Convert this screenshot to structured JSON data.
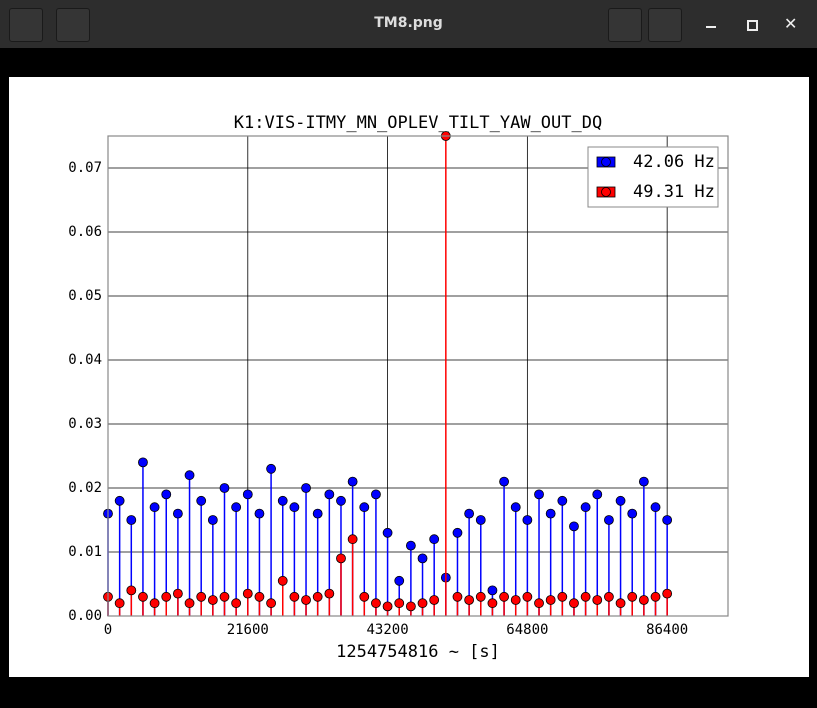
{
  "window": {
    "title": "TM8.png"
  },
  "chart_data": {
    "type": "stem",
    "title": "K1:VIS-ITMY_MN_OPLEV_TILT_YAW_OUT_DQ",
    "xlabel": "1254754816 ~ [s]",
    "xlim": [
      0,
      95800
    ],
    "xticks": [
      0,
      21600,
      43200,
      64800,
      86400
    ],
    "ylim": [
      0,
      0.075
    ],
    "yticks": [
      {
        "value": 0,
        "label": "0.00"
      },
      0.01,
      0.02,
      0.03,
      0.04,
      0.05,
      0.06,
      0.07
    ],
    "grid": true,
    "legend": "upper right",
    "x": [
      0,
      1800,
      3600,
      5400,
      7200,
      9000,
      10800,
      12600,
      14400,
      16200,
      18000,
      19800,
      21600,
      23400,
      25200,
      27000,
      28800,
      30600,
      32400,
      34200,
      36000,
      37800,
      39600,
      41400,
      43200,
      45000,
      46800,
      48600,
      50400,
      52200,
      54000,
      55800,
      57600,
      59400,
      61200,
      63000,
      64800,
      66600,
      68400,
      70200,
      72000,
      73800,
      75600,
      77400,
      79200,
      81000,
      82800,
      84600,
      86400
    ],
    "series": [
      {
        "name": "42.06 Hz",
        "color": "#0000ff",
        "values": [
          0.016,
          0.018,
          0.015,
          0.024,
          0.017,
          0.019,
          0.016,
          0.022,
          0.018,
          0.015,
          0.02,
          0.017,
          0.019,
          0.016,
          0.023,
          0.018,
          0.017,
          0.02,
          0.016,
          0.019,
          0.018,
          0.021,
          0.017,
          0.019,
          0.013,
          0.0055,
          0.011,
          0.009,
          0.012,
          0.006,
          0.013,
          0.016,
          0.015,
          0.004,
          0.021,
          0.017,
          0.015,
          0.019,
          0.016,
          0.018,
          0.014,
          0.017,
          0.019,
          0.015,
          0.018,
          0.016,
          0.021,
          0.017,
          0.015
        ]
      },
      {
        "name": "49.31 Hz",
        "color": "#ff0000",
        "values": [
          0.003,
          0.002,
          0.004,
          0.003,
          0.002,
          0.003,
          0.0035,
          0.002,
          0.003,
          0.0025,
          0.003,
          0.002,
          0.0035,
          0.003,
          0.002,
          0.0055,
          0.003,
          0.0025,
          0.003,
          0.0035,
          0.009,
          0.012,
          0.003,
          0.002,
          0.0015,
          0.002,
          0.0015,
          0.002,
          0.0025,
          0.075,
          0.003,
          0.0025,
          0.003,
          0.002,
          0.003,
          0.0025,
          0.003,
          0.002,
          0.0025,
          0.003,
          0.002,
          0.003,
          0.0025,
          0.003,
          0.002,
          0.003,
          0.0025,
          0.003,
          0.0035
        ]
      }
    ]
  }
}
